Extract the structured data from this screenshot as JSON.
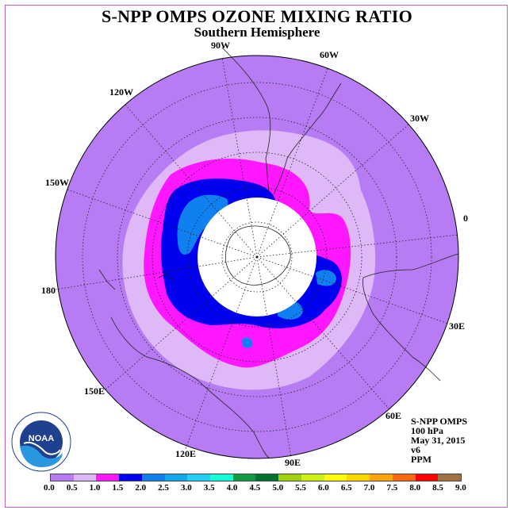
{
  "title": "S-NPP OMPS OZONE MIXING RATIO",
  "subtitle": "Southern Hemisphere",
  "longitude_labels": {
    "w90": "90W",
    "w60": "60W",
    "w30": "30W",
    "zero": "0",
    "e30": "30E",
    "e60": "60E",
    "e90": "90E",
    "e120": "120E",
    "e150": "150E",
    "l180": "180",
    "w150": "150W",
    "w120": "120W"
  },
  "info": {
    "instrument": "S-NPP OMPS",
    "pressure": "100 hPa",
    "date": "May 31, 2015",
    "version": "v6",
    "units": "PPM"
  },
  "logo": {
    "text": "NOAA"
  },
  "colorbar": {
    "colors": [
      "#b77cf4",
      "#dfb8f8",
      "#ff17ff",
      "#0000ee",
      "#1080f0",
      "#14a6ee",
      "#23cdf5",
      "#12ffd8",
      "#119c43",
      "#007230",
      "#9fd20c",
      "#cfef17",
      "#fffb10",
      "#ffd800",
      "#ffa30f",
      "#ff6713",
      "#ff0000",
      "#a07045"
    ],
    "ticks": [
      "0.0",
      "0.5",
      "1.0",
      "1.5",
      "2.0",
      "2.5",
      "3.0",
      "3.5",
      "4.0",
      "4.5",
      "5.0",
      "5.5",
      "6.0",
      "6.5",
      "7.0",
      "7.5",
      "8.0",
      "8.5",
      "9.0"
    ]
  }
}
